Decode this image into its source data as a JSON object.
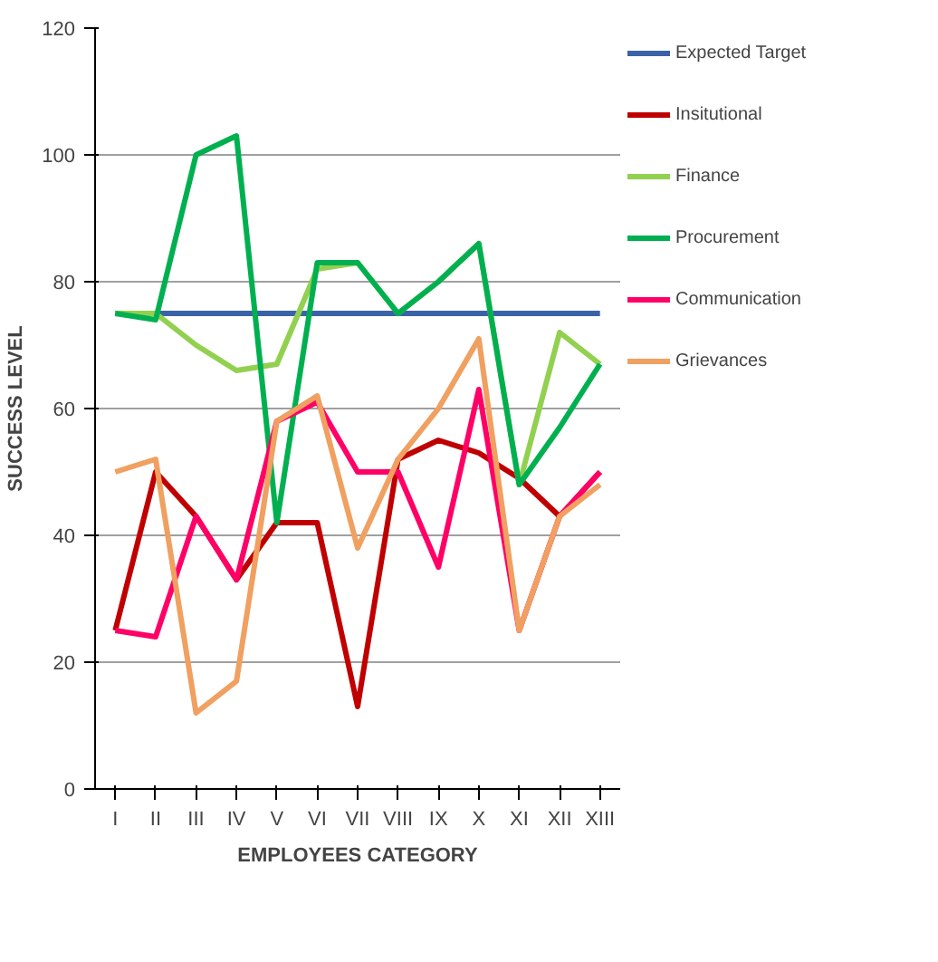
{
  "chart_data": {
    "type": "line",
    "xlabel": "EMPLOYEES CATEGORY",
    "ylabel": "SUCCESS LEVEL",
    "categories": [
      "I",
      "II",
      "III",
      "IV",
      "V",
      "VI",
      "VII",
      "VIII",
      "IX",
      "X",
      "XI",
      "XII",
      "XIII"
    ],
    "ylim": [
      0,
      120
    ],
    "yticks": [
      0,
      20,
      40,
      60,
      80,
      100,
      120
    ],
    "grid": "y",
    "legend": "right",
    "line_style": "solid",
    "marker": "none",
    "series": [
      {
        "name": "Expected Target",
        "color": "#3a62a7",
        "values": [
          75,
          75,
          75,
          75,
          75,
          75,
          75,
          75,
          75,
          75,
          75,
          75,
          75
        ]
      },
      {
        "name": "Insitutional",
        "color": "#c00000",
        "values": [
          25,
          50,
          43,
          33,
          42,
          42,
          13,
          52,
          55,
          53,
          49,
          43,
          50
        ]
      },
      {
        "name": "Finance",
        "color": "#92d050",
        "values": [
          75,
          75,
          70,
          66,
          67,
          82,
          83,
          75,
          80,
          86,
          48,
          72,
          67
        ]
      },
      {
        "name": "Procurement",
        "color": "#00b050",
        "values": [
          75,
          74,
          100,
          103,
          42,
          83,
          83,
          75,
          80,
          86,
          48,
          57,
          67
        ]
      },
      {
        "name": "Communication",
        "color": "#ff0066",
        "values": [
          25,
          24,
          43,
          33,
          58,
          61,
          50,
          50,
          35,
          63,
          25,
          43,
          50
        ]
      },
      {
        "name": "Grievances",
        "color": "#f0a060",
        "values": [
          50,
          52,
          12,
          17,
          58,
          62,
          38,
          52,
          60,
          71,
          25,
          43,
          48
        ]
      }
    ]
  }
}
